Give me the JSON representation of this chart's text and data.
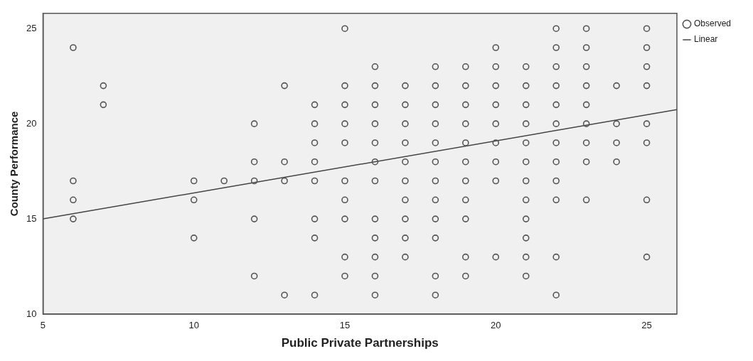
{
  "chart_data": {
    "type": "scatter",
    "xlabel": "Public Private Partnerships",
    "ylabel": "County Performance",
    "xlim": [
      5,
      26
    ],
    "ylim": [
      10,
      25.8
    ],
    "xticks": [
      5,
      10,
      15,
      20,
      25
    ],
    "yticks": [
      10,
      15,
      20,
      25
    ],
    "grid": false,
    "legend": "top right",
    "series": [
      {
        "name": "Observed",
        "type": "scatter",
        "marker": "circle",
        "color": "#555555",
        "x": [
          15,
          22,
          23,
          25,
          6,
          20,
          22,
          23,
          25,
          16,
          18,
          19,
          20,
          21,
          22,
          23,
          25,
          7,
          13,
          15,
          16,
          17,
          18,
          19,
          20,
          21,
          22,
          23,
          24,
          25,
          7,
          14,
          15,
          16,
          17,
          18,
          19,
          20,
          21,
          22,
          23,
          12,
          14,
          15,
          16,
          17,
          18,
          19,
          20,
          21,
          22,
          23,
          24,
          25,
          14,
          15,
          16,
          17,
          18,
          19,
          20,
          21,
          22,
          23,
          24,
          25,
          12,
          13,
          14,
          16,
          17,
          18,
          19,
          20,
          21,
          22,
          23,
          24,
          6,
          10,
          11,
          12,
          13,
          14,
          15,
          16,
          17,
          18,
          19,
          20,
          21,
          22,
          6,
          10,
          15,
          17,
          18,
          19,
          21,
          22,
          23,
          25,
          6,
          12,
          14,
          15,
          16,
          17,
          18,
          19,
          21,
          10,
          14,
          16,
          17,
          18,
          21,
          15,
          16,
          17,
          19,
          20,
          21,
          22,
          25,
          12,
          15,
          16,
          18,
          19,
          21,
          13,
          14,
          16,
          18,
          22
        ],
        "values": [
          25,
          25,
          25,
          25,
          24,
          24,
          24,
          24,
          24,
          23,
          23,
          23,
          23,
          23,
          23,
          23,
          23,
          22,
          22,
          22,
          22,
          22,
          22,
          22,
          22,
          22,
          22,
          22,
          22,
          22,
          21,
          21,
          21,
          21,
          21,
          21,
          21,
          21,
          21,
          21,
          21,
          20,
          20,
          20,
          20,
          20,
          20,
          20,
          20,
          20,
          20,
          20,
          20,
          20,
          19,
          19,
          19,
          19,
          19,
          19,
          19,
          19,
          19,
          19,
          19,
          19,
          18,
          18,
          18,
          18,
          18,
          18,
          18,
          18,
          18,
          18,
          18,
          18,
          17,
          17,
          17,
          17,
          17,
          17,
          17,
          17,
          17,
          17,
          17,
          17,
          17,
          17,
          16,
          16,
          16,
          16,
          16,
          16,
          16,
          16,
          16,
          16,
          15,
          15,
          15,
          15,
          15,
          15,
          15,
          15,
          15,
          14,
          14,
          14,
          14,
          14,
          14,
          13,
          13,
          13,
          13,
          13,
          13,
          13,
          13,
          12,
          12,
          12,
          12,
          12,
          12,
          11,
          11,
          11,
          11,
          11
        ]
      },
      {
        "name": "Linear",
        "type": "line",
        "marker": "none",
        "color": "#444444",
        "x": [
          5,
          26
        ],
        "values": [
          15.0,
          20.74
        ]
      }
    ]
  }
}
